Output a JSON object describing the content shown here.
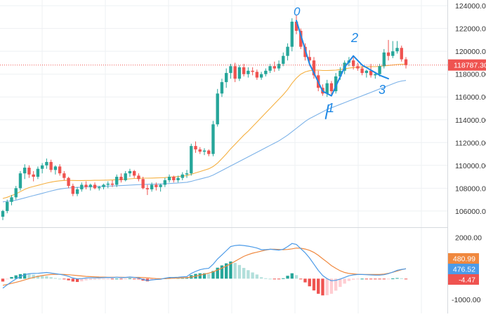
{
  "colors": {
    "up": "#26a69a",
    "down": "#ef5350",
    "hist_up_strong": "#26a69a",
    "hist_up_weak": "#b2dfdb",
    "hist_down_strong": "#ef5350",
    "hist_down_weak": "#ffcdd2",
    "ma_fast": "#f5b041",
    "ma_slow": "#7cb2e8",
    "macd_line": "#4c9be8",
    "signal_line": "#f0883e",
    "annotation": "#1e88e5",
    "price_line": "#ef5350",
    "grid": "#eef0f3",
    "axis_text": "#333333"
  },
  "price_axis": {
    "ticks": [
      "124000.00",
      "122000.00",
      "120000.00",
      "118000.00",
      "116000.00",
      "114000.00",
      "112000.00",
      "110000.00",
      "108000.00",
      "106000.00"
    ],
    "ylim": [
      104700,
      124500
    ]
  },
  "current_price_label": "118787.30",
  "macd_axis": {
    "ticks": [
      "2000.00",
      "-1000.00"
    ],
    "ylim": [
      -1650,
      2350
    ]
  },
  "macd_badges": {
    "signal": "480.99",
    "macd": "476.52",
    "hist": "-4.47"
  },
  "annotations": [
    "0",
    "1",
    "2",
    "3"
  ],
  "chart_data": {
    "type": "candlestick",
    "title": "",
    "xlabel": "",
    "ylabel": "",
    "ohlc": [
      [
        105500,
        106100,
        105200,
        106000
      ],
      [
        106000,
        107000,
        105800,
        106800
      ],
      [
        106800,
        107400,
        106500,
        107200
      ],
      [
        107200,
        108200,
        107000,
        108000
      ],
      [
        108000,
        109500,
        107800,
        109300
      ],
      [
        109300,
        110100,
        108800,
        109800
      ],
      [
        109800,
        110000,
        108900,
        109200
      ],
      [
        109200,
        109500,
        108600,
        109000
      ],
      [
        109000,
        109900,
        108800,
        109700
      ],
      [
        109700,
        110200,
        109300,
        110000
      ],
      [
        110000,
        110600,
        109700,
        110300
      ],
      [
        110300,
        110500,
        109400,
        109600
      ],
      [
        109600,
        110000,
        109200,
        109900
      ],
      [
        109900,
        110100,
        109100,
        109300
      ],
      [
        109300,
        109500,
        108700,
        108900
      ],
      [
        108900,
        109000,
        108000,
        108200
      ],
      [
        108200,
        108400,
        107300,
        107500
      ],
      [
        107500,
        108100,
        107300,
        107900
      ],
      [
        107900,
        108500,
        107700,
        108300
      ],
      [
        108300,
        108600,
        107900,
        108100
      ],
      [
        108100,
        108400,
        107800,
        108300
      ],
      [
        108300,
        108500,
        107900,
        108000
      ],
      [
        108000,
        108200,
        107800,
        108100
      ],
      [
        108100,
        108400,
        107900,
        108300
      ],
      [
        108300,
        108600,
        108000,
        108400
      ],
      [
        108400,
        108700,
        108100,
        108300
      ],
      [
        108300,
        109200,
        108100,
        109000
      ],
      [
        109000,
        109300,
        108500,
        108700
      ],
      [
        108700,
        109500,
        108600,
        109300
      ],
      [
        109300,
        109700,
        109000,
        109500
      ],
      [
        109500,
        109600,
        108900,
        109100
      ],
      [
        109100,
        109300,
        108600,
        108800
      ],
      [
        108800,
        109000,
        107900,
        108000
      ],
      [
        108000,
        108300,
        107400,
        107900
      ],
      [
        107900,
        108500,
        107700,
        108300
      ],
      [
        108300,
        108500,
        107800,
        108100
      ],
      [
        108100,
        108400,
        107700,
        108300
      ],
      [
        108300,
        108900,
        108100,
        108700
      ],
      [
        108700,
        109200,
        108500,
        109000
      ],
      [
        109000,
        109100,
        108500,
        108700
      ],
      [
        108700,
        109100,
        108500,
        108900
      ],
      [
        108900,
        109400,
        108700,
        109200
      ],
      [
        109200,
        109600,
        108900,
        109300
      ],
      [
        109300,
        111900,
        109100,
        111700
      ],
      [
        111700,
        112100,
        111100,
        111400
      ],
      [
        111400,
        111600,
        111000,
        111200
      ],
      [
        111200,
        111500,
        110900,
        111300
      ],
      [
        111300,
        111400,
        110800,
        111000
      ],
      [
        111000,
        113900,
        110800,
        113600
      ],
      [
        113600,
        116700,
        113400,
        116300
      ],
      [
        116300,
        117600,
        116000,
        117300
      ],
      [
        117300,
        118500,
        116800,
        118100
      ],
      [
        118100,
        118900,
        117600,
        118700
      ],
      [
        118700,
        119000,
        117300,
        117600
      ],
      [
        117600,
        118800,
        117400,
        118600
      ],
      [
        118600,
        118900,
        117800,
        118000
      ],
      [
        118000,
        118600,
        117700,
        118300
      ],
      [
        118300,
        118600,
        117900,
        118200
      ],
      [
        118200,
        118400,
        117500,
        117700
      ],
      [
        117700,
        118200,
        117500,
        118000
      ],
      [
        118000,
        118500,
        117800,
        118300
      ],
      [
        118300,
        118900,
        118100,
        118700
      ],
      [
        118700,
        119100,
        118200,
        118500
      ],
      [
        118500,
        119200,
        118300,
        118900
      ],
      [
        118900,
        119900,
        118700,
        119600
      ],
      [
        119600,
        120700,
        119200,
        120400
      ],
      [
        120400,
        122900,
        120000,
        122600
      ],
      [
        122600,
        123200,
        121500,
        121800
      ],
      [
        121800,
        122000,
        120200,
        120400
      ],
      [
        120400,
        120700,
        119200,
        119500
      ],
      [
        119500,
        120100,
        118700,
        119200
      ],
      [
        119200,
        119500,
        117600,
        117900
      ],
      [
        117900,
        118300,
        116500,
        116800
      ],
      [
        116800,
        117100,
        116100,
        116300
      ],
      [
        116300,
        117500,
        116000,
        117200
      ],
      [
        117200,
        117400,
        116200,
        116500
      ],
      [
        116500,
        118100,
        116300,
        117800
      ],
      [
        117800,
        118600,
        117500,
        118300
      ],
      [
        118300,
        119200,
        118000,
        119000
      ],
      [
        119000,
        119500,
        118700,
        119200
      ],
      [
        119200,
        119600,
        118400,
        118700
      ],
      [
        118700,
        119000,
        118300,
        118500
      ],
      [
        118500,
        118700,
        117900,
        118100
      ],
      [
        118100,
        118400,
        117700,
        118300
      ],
      [
        118300,
        118900,
        117700,
        117900
      ],
      [
        117900,
        118200,
        117600,
        118000
      ],
      [
        118000,
        118900,
        117800,
        118700
      ],
      [
        118700,
        120200,
        118500,
        119900
      ],
      [
        119900,
        121000,
        119200,
        119600
      ],
      [
        119600,
        120900,
        119400,
        120000
      ],
      [
        120000,
        120900,
        119800,
        120300
      ],
      [
        120300,
        120500,
        119100,
        119300
      ],
      [
        119300,
        119500,
        118500,
        118800
      ]
    ],
    "series": [
      {
        "values": [
          107100,
          107200,
          107350,
          107500,
          107700,
          107900,
          108050,
          108150,
          108250,
          108350,
          108450,
          108530,
          108600,
          108650,
          108680,
          108690,
          108680,
          108670,
          108670,
          108680,
          108680,
          108690,
          108690,
          108700,
          108710,
          108720,
          108740,
          108760,
          108790,
          108820,
          108850,
          108870,
          108880,
          108880,
          108890,
          108900,
          108910,
          108930,
          108960,
          108990,
          109020,
          109060,
          109100,
          109220,
          109340,
          109460,
          109580,
          109700,
          109900,
          110200,
          110600,
          111000,
          111450,
          111850,
          112250,
          112650,
          113000,
          113400,
          113800,
          114200,
          114600,
          115000,
          115400,
          115800,
          116200,
          116650,
          117200,
          117650,
          118000,
          118200,
          118300,
          118350,
          118350,
          118320,
          118320,
          118330,
          118350,
          118400,
          118460,
          118530,
          118580,
          118600,
          118620,
          118640,
          118650,
          118660,
          118680,
          118720,
          118760,
          118800,
          118840,
          118860,
          118870
        ]
      },
      {
        "values": [
          106800,
          106850,
          106900,
          106950,
          107050,
          107150,
          107250,
          107350,
          107450,
          107550,
          107650,
          107750,
          107850,
          107920,
          107980,
          108020,
          108050,
          108070,
          108090,
          108110,
          108130,
          108150,
          108160,
          108170,
          108180,
          108190,
          108210,
          108230,
          108250,
          108270,
          108290,
          108310,
          108330,
          108340,
          108350,
          108360,
          108370,
          108390,
          108410,
          108430,
          108460,
          108490,
          108520,
          108600,
          108700,
          108800,
          108900,
          109000,
          109150,
          109350,
          109550,
          109750,
          109950,
          110150,
          110350,
          110550,
          110750,
          110950,
          111150,
          111350,
          111550,
          111750,
          111950,
          112150,
          112400,
          112650,
          112950,
          113250,
          113550,
          113850,
          114100,
          114300,
          114500,
          114700,
          114900,
          115050,
          115200,
          115350,
          115500,
          115650,
          115800,
          115950,
          116100,
          116250,
          116400,
          116550,
          116700,
          116850,
          117000,
          117150,
          117300,
          117400,
          117450
        ]
      }
    ],
    "macd": [
      -460,
      -300,
      -150,
      -20,
      100,
      190,
      240,
      250,
      260,
      280,
      300,
      270,
      240,
      210,
      170,
      110,
      30,
      -10,
      0,
      30,
      40,
      40,
      40,
      50,
      60,
      50,
      70,
      50,
      60,
      80,
      60,
      30,
      -40,
      -90,
      -60,
      -40,
      -30,
      20,
      60,
      60,
      70,
      90,
      100,
      250,
      350,
      430,
      480,
      500,
      700,
      950,
      1150,
      1350,
      1550,
      1600,
      1620,
      1600,
      1570,
      1530,
      1480,
      1400,
      1400,
      1420,
      1400,
      1380,
      1420,
      1550,
      1700,
      1650,
      1450,
      1250,
      1000,
      700,
      400,
      150,
      0,
      -100,
      -80,
      -20,
      60,
      140,
      180,
      200,
      200,
      190,
      180,
      170,
      170,
      190,
      240,
      320,
      400,
      450,
      476.52
    ],
    "signal": [
      -320,
      -280,
      -230,
      -180,
      -120,
      -60,
      0,
      60,
      110,
      150,
      180,
      200,
      210,
      210,
      200,
      190,
      170,
      150,
      130,
      110,
      100,
      90,
      80,
      75,
      70,
      68,
      66,
      64,
      62,
      62,
      62,
      62,
      55,
      40,
      20,
      5,
      -5,
      0,
      10,
      20,
      30,
      40,
      50,
      80,
      120,
      170,
      220,
      270,
      330,
      420,
      510,
      610,
      720,
      840,
      960,
      1080,
      1160,
      1230,
      1280,
      1330,
      1380,
      1420,
      1420,
      1410,
      1400,
      1410,
      1440,
      1480,
      1470,
      1430,
      1370,
      1270,
      1130,
      960,
      800,
      630,
      500,
      380,
      300,
      250,
      230,
      210,
      200,
      200,
      200,
      200,
      200,
      220,
      260,
      310,
      370,
      430,
      480.99
    ]
  }
}
